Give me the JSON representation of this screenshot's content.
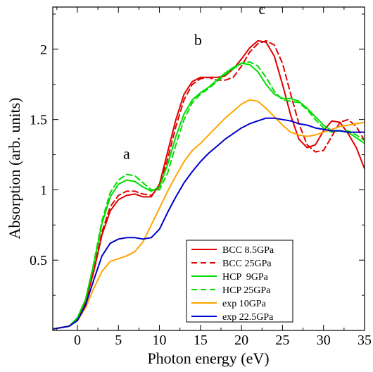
{
  "chart_data": {
    "type": "line",
    "xlabel": "Photon energy (eV)",
    "ylabel": "Absorption (arb. units)",
    "xlim": [
      -3,
      35
    ],
    "ylim": [
      0,
      2.3
    ],
    "x_ticks": [
      0,
      5,
      10,
      15,
      20,
      25,
      30,
      35
    ],
    "y_ticks": [
      0.5,
      1,
      1.5,
      2
    ],
    "y_tick_labels": [
      "0.5",
      "1",
      "1.5",
      "2"
    ],
    "legend_position": "lower-right",
    "grid": false,
    "annotations": [
      {
        "text": "a",
        "x": 6,
        "y": 1.22
      },
      {
        "text": "b",
        "x": 14.7,
        "y": 2.03
      },
      {
        "text": "c",
        "x": 22.5,
        "y": 2.25
      }
    ],
    "series": [
      {
        "name": "BCC 8.5GPa",
        "color": "#e00000",
        "dash": "solid",
        "x": [
          -3,
          -1,
          0,
          1,
          2,
          3,
          4,
          5,
          6,
          7,
          8,
          9,
          10,
          11,
          12,
          13,
          14,
          15,
          16,
          17,
          18,
          19,
          20,
          21,
          22,
          23,
          24,
          25,
          26,
          27,
          28,
          29,
          30,
          31,
          32,
          33,
          34,
          35
        ],
        "y": [
          0.01,
          0.03,
          0.08,
          0.2,
          0.42,
          0.68,
          0.85,
          0.93,
          0.96,
          0.97,
          0.95,
          0.95,
          1.04,
          1.27,
          1.5,
          1.68,
          1.77,
          1.8,
          1.8,
          1.8,
          1.81,
          1.86,
          1.93,
          2.01,
          2.06,
          2.05,
          1.95,
          1.75,
          1.53,
          1.36,
          1.3,
          1.32,
          1.42,
          1.49,
          1.48,
          1.4,
          1.3,
          1.15
        ]
      },
      {
        "name": "BCC 25GPa",
        "color": "#e00000",
        "dash": "dashed",
        "x": [
          -3,
          -1,
          0,
          1,
          2,
          3,
          4,
          5,
          6,
          7,
          8,
          9,
          10,
          11,
          12,
          13,
          14,
          15,
          16,
          17,
          18,
          19,
          20,
          21,
          22,
          23,
          24,
          25,
          26,
          27,
          28,
          29,
          30,
          31,
          32,
          33,
          34,
          35
        ],
        "y": [
          0.01,
          0.03,
          0.08,
          0.2,
          0.43,
          0.7,
          0.88,
          0.96,
          0.99,
          0.99,
          0.97,
          0.96,
          1.02,
          1.22,
          1.45,
          1.64,
          1.75,
          1.79,
          1.8,
          1.78,
          1.78,
          1.8,
          1.88,
          1.98,
          2.04,
          2.06,
          2.03,
          1.9,
          1.68,
          1.47,
          1.32,
          1.27,
          1.28,
          1.38,
          1.48,
          1.5,
          1.45,
          1.35
        ]
      },
      {
        "name": "HCP  9GPa",
        "color": "#00dd00",
        "dash": "solid",
        "x": [
          -3,
          -1,
          0,
          1,
          2,
          3,
          4,
          5,
          6,
          7,
          8,
          9,
          10,
          11,
          12,
          13,
          14,
          15,
          16,
          17,
          18,
          19,
          20,
          21,
          22,
          23,
          24,
          25,
          26,
          27,
          28,
          29,
          30,
          31,
          32,
          33,
          34,
          35
        ],
        "y": [
          0.01,
          0.03,
          0.09,
          0.22,
          0.47,
          0.76,
          0.95,
          1.04,
          1.07,
          1.06,
          1.02,
          0.99,
          1.02,
          1.18,
          1.38,
          1.54,
          1.64,
          1.69,
          1.73,
          1.78,
          1.83,
          1.87,
          1.9,
          1.89,
          1.84,
          1.75,
          1.68,
          1.65,
          1.65,
          1.63,
          1.58,
          1.52,
          1.46,
          1.42,
          1.42,
          1.41,
          1.37,
          1.33
        ]
      },
      {
        "name": "HCP 25GPa",
        "color": "#00dd00",
        "dash": "dashed",
        "x": [
          -3,
          -1,
          0,
          1,
          2,
          3,
          4,
          5,
          6,
          7,
          8,
          9,
          10,
          11,
          12,
          13,
          14,
          15,
          16,
          17,
          18,
          19,
          20,
          21,
          22,
          23,
          24,
          25,
          26,
          27,
          28,
          29,
          30,
          31,
          32,
          33,
          34,
          35
        ],
        "y": [
          0.01,
          0.03,
          0.09,
          0.22,
          0.48,
          0.78,
          0.98,
          1.07,
          1.11,
          1.1,
          1.05,
          1.0,
          1.0,
          1.12,
          1.32,
          1.5,
          1.62,
          1.68,
          1.72,
          1.77,
          1.82,
          1.86,
          1.9,
          1.91,
          1.88,
          1.8,
          1.7,
          1.64,
          1.63,
          1.62,
          1.57,
          1.5,
          1.44,
          1.41,
          1.42,
          1.42,
          1.39,
          1.35
        ]
      },
      {
        "name": "exp 10GPa",
        "color": "#ffa500",
        "dash": "solid",
        "x": [
          -3,
          -1,
          0,
          1,
          2,
          3,
          4,
          5,
          6,
          7,
          8,
          9,
          10,
          11,
          12,
          13,
          14,
          15,
          16,
          17,
          18,
          19,
          20,
          21,
          22,
          23,
          24,
          25,
          26,
          27,
          28,
          29,
          30,
          31,
          32,
          33,
          34,
          35
        ],
        "y": [
          0.01,
          0.03,
          0.07,
          0.16,
          0.3,
          0.42,
          0.49,
          0.51,
          0.53,
          0.56,
          0.63,
          0.75,
          0.87,
          0.99,
          1.1,
          1.2,
          1.28,
          1.33,
          1.39,
          1.45,
          1.51,
          1.56,
          1.61,
          1.64,
          1.63,
          1.58,
          1.52,
          1.46,
          1.41,
          1.39,
          1.38,
          1.39,
          1.41,
          1.43,
          1.45,
          1.46,
          1.47,
          1.48
        ]
      },
      {
        "name": "exp 22.5GPa",
        "color": "#0000cc",
        "dash": "solid",
        "x": [
          -3,
          -1,
          0,
          1,
          2,
          3,
          4,
          5,
          6,
          7,
          8,
          9,
          10,
          11,
          12,
          13,
          14,
          15,
          16,
          17,
          18,
          19,
          20,
          21,
          22,
          23,
          24,
          25,
          26,
          27,
          28,
          29,
          30,
          31,
          32,
          33,
          34,
          35
        ],
        "y": [
          0.01,
          0.03,
          0.07,
          0.18,
          0.36,
          0.53,
          0.62,
          0.65,
          0.66,
          0.66,
          0.65,
          0.66,
          0.72,
          0.84,
          0.95,
          1.05,
          1.13,
          1.2,
          1.26,
          1.31,
          1.36,
          1.4,
          1.44,
          1.47,
          1.49,
          1.51,
          1.51,
          1.5,
          1.49,
          1.47,
          1.46,
          1.44,
          1.43,
          1.42,
          1.42,
          1.41,
          1.41,
          1.41
        ]
      }
    ]
  }
}
